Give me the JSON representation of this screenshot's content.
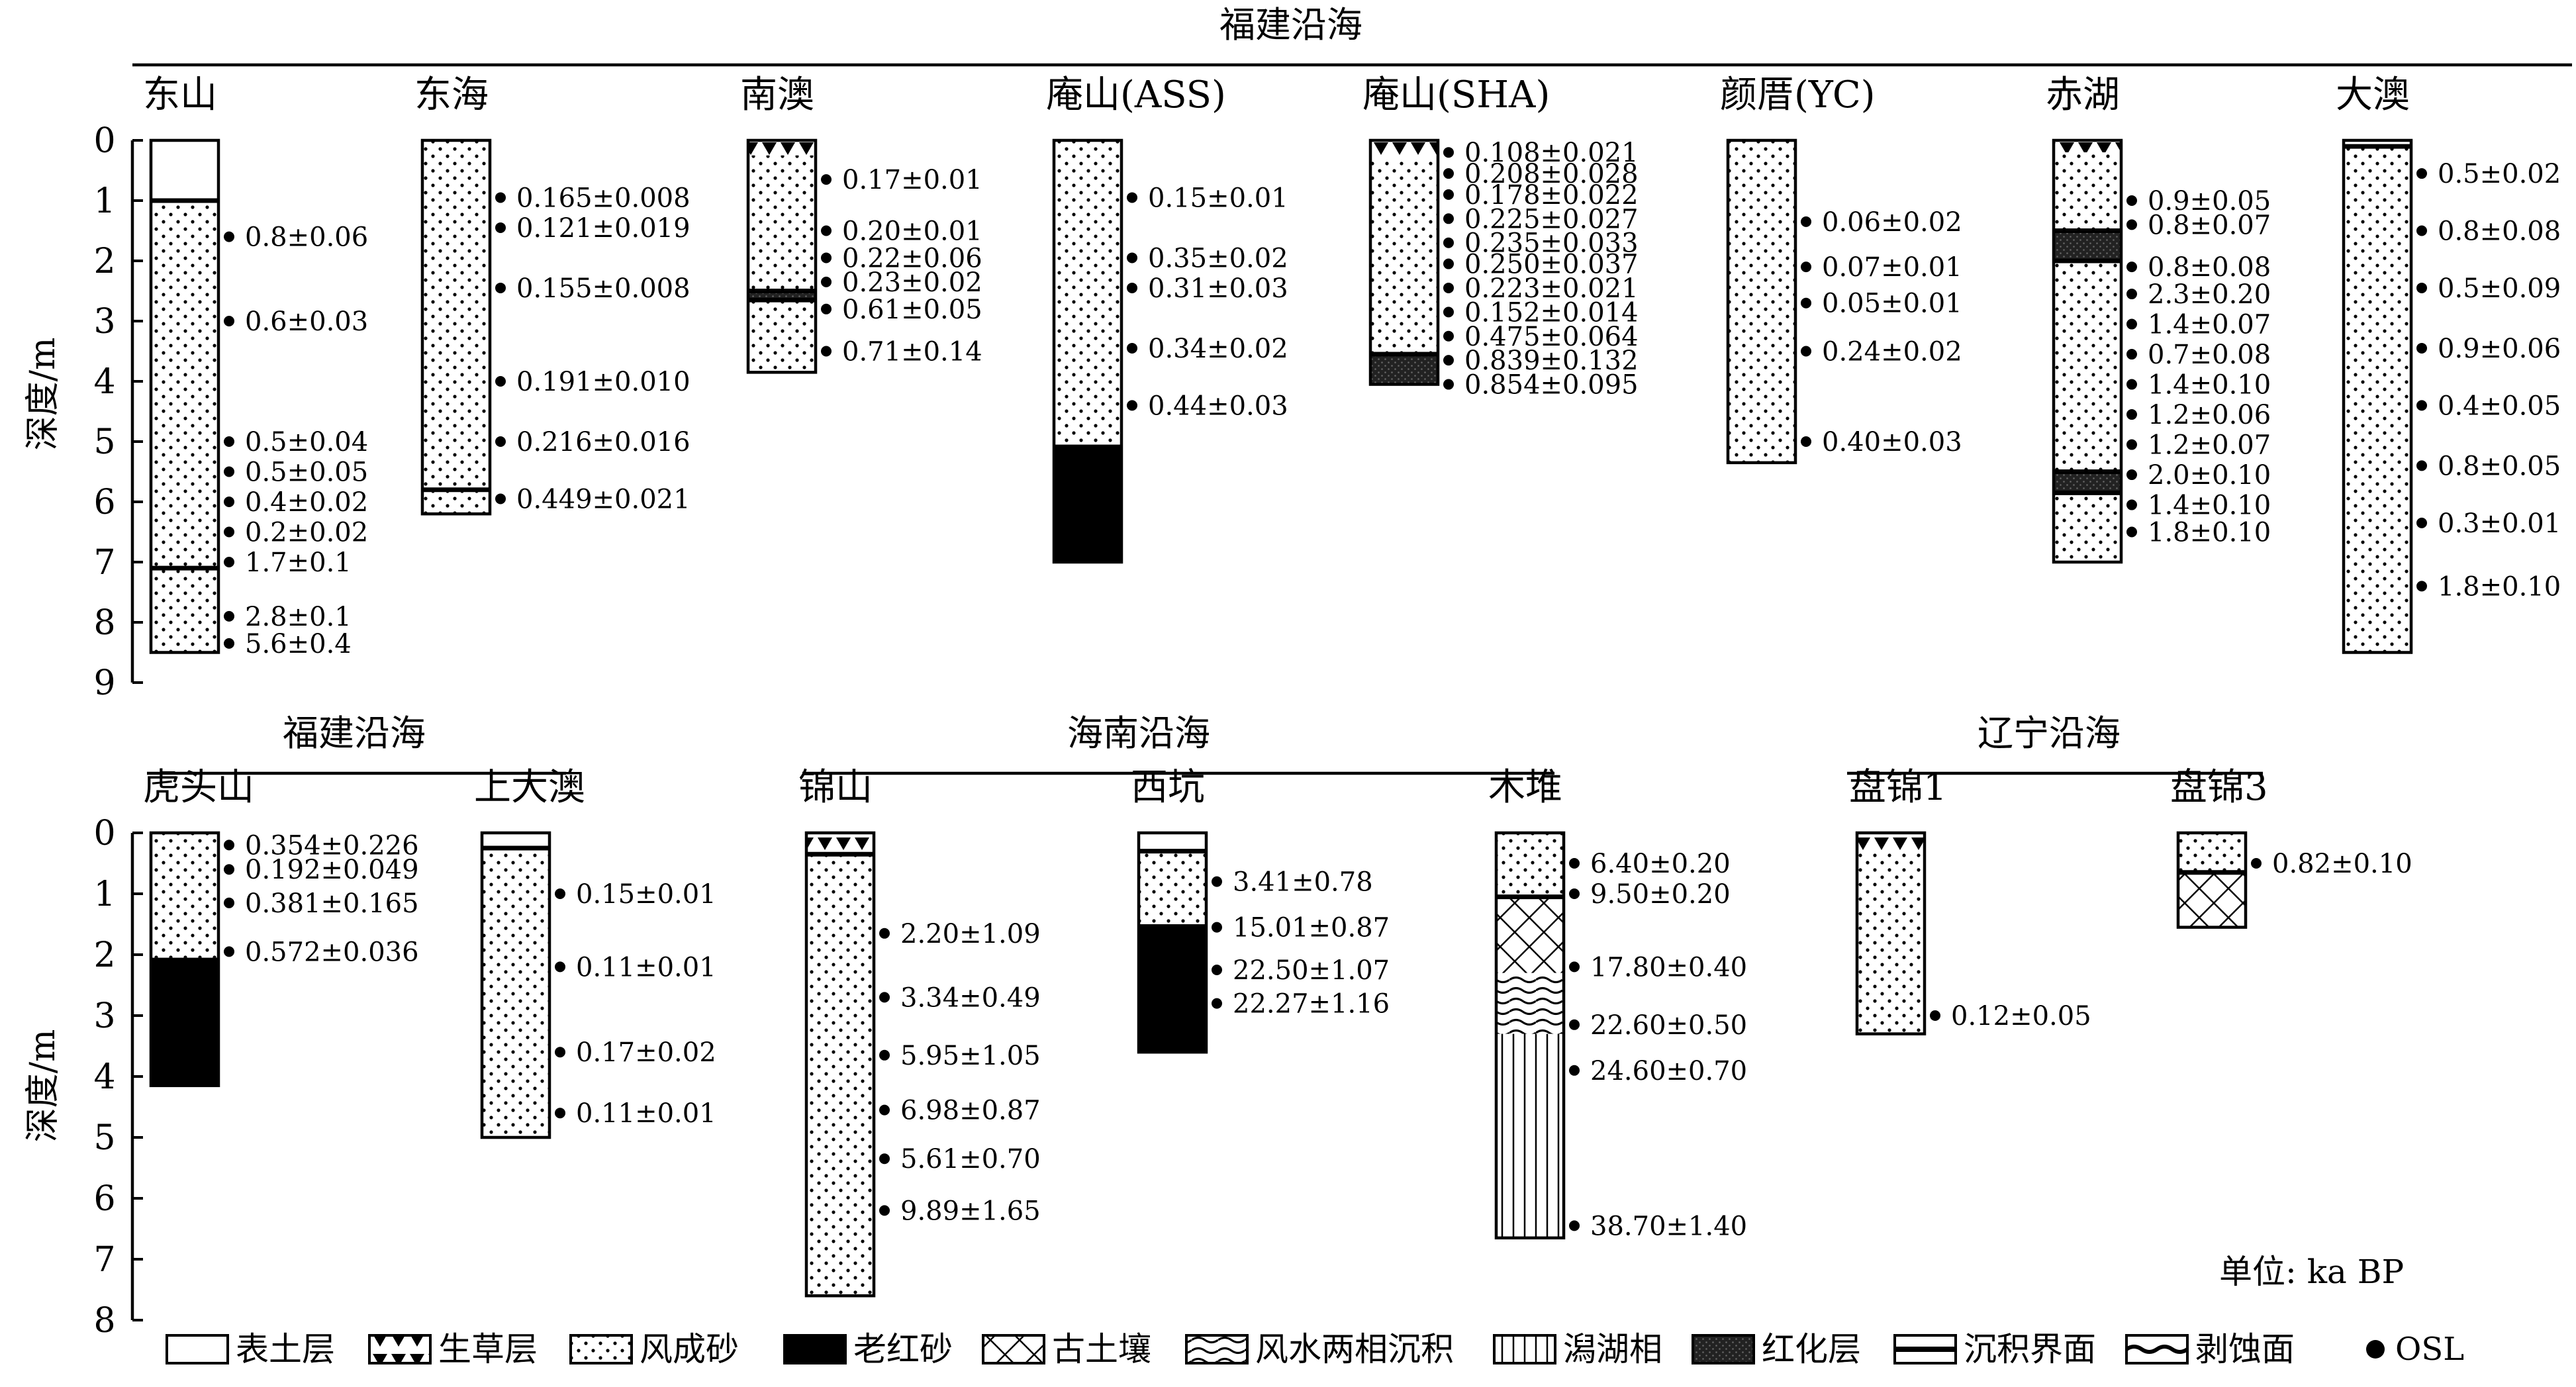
{
  "units_note": "单位: ka BP",
  "depth_axis_label": "深度/m",
  "regions": [
    {
      "name": "福建沿海"
    },
    {
      "name": "福建沿海"
    },
    {
      "name": "海南沿海"
    },
    {
      "name": "辽宁沿海"
    }
  ],
  "legend": [
    {
      "key": "topsoil",
      "label": "表土层"
    },
    {
      "key": "grass",
      "label": "生草层"
    },
    {
      "key": "aeolian",
      "label": "风成砂"
    },
    {
      "key": "oldred",
      "label": "老红砂"
    },
    {
      "key": "paleosol",
      "label": "古土壤"
    },
    {
      "key": "wavy",
      "label": "风水两相沉积"
    },
    {
      "key": "lagoon",
      "label": "潟湖相"
    },
    {
      "key": "redden",
      "label": "红化层"
    },
    {
      "key": "boundary",
      "label": "沉积界面"
    },
    {
      "key": "erosion",
      "label": "剥蚀面"
    },
    {
      "key": "osl",
      "label": "OSL"
    }
  ],
  "axes": [
    {
      "ticks": [
        "0",
        "1",
        "2",
        "3",
        "4",
        "5",
        "6",
        "7",
        "8",
        "9"
      ]
    },
    {
      "ticks": [
        "0",
        "1",
        "2",
        "3",
        "4",
        "5",
        "6",
        "7",
        "8"
      ]
    }
  ],
  "profiles": [
    {
      "name": "东山",
      "total_depth_m": 8.5,
      "layers": [
        {
          "type": "topsoil",
          "top": 0,
          "bottom": 1
        },
        {
          "type": "aeolian",
          "top": 1,
          "bottom": 8.5
        }
      ],
      "boundaries": [
        {
          "type": "boundary",
          "depth": 1
        },
        {
          "type": "boundary",
          "depth": 7.1
        }
      ],
      "osl": [
        {
          "depth": 1.6,
          "age": "0.8±0.06"
        },
        {
          "depth": 3.0,
          "age": "0.6±0.03"
        },
        {
          "depth": 5.0,
          "age": "0.5±0.04"
        },
        {
          "depth": 5.5,
          "age": "0.5±0.05"
        },
        {
          "depth": 6.0,
          "age": "0.4±0.02"
        },
        {
          "depth": 6.5,
          "age": "0.2±0.02"
        },
        {
          "depth": 7.0,
          "age": "1.7±0.1"
        },
        {
          "depth": 7.9,
          "age": "2.8±0.1"
        },
        {
          "depth": 8.35,
          "age": "5.6±0.4"
        }
      ]
    },
    {
      "name": "东海",
      "total_depth_m": 6.2,
      "layers": [
        {
          "type": "aeolian",
          "top": 0,
          "bottom": 6.2
        }
      ],
      "boundaries": [
        {
          "type": "boundary",
          "depth": 5.8
        }
      ],
      "osl": [
        {
          "depth": 0.95,
          "age": "0.165±0.008"
        },
        {
          "depth": 1.45,
          "age": "0.121±0.019"
        },
        {
          "depth": 2.45,
          "age": "0.155±0.008"
        },
        {
          "depth": 4.0,
          "age": "0.191±0.010"
        },
        {
          "depth": 5.0,
          "age": "0.216±0.016"
        },
        {
          "depth": 5.95,
          "age": "0.449±0.021"
        }
      ]
    },
    {
      "name": "南澳",
      "total_depth_m": 3.85,
      "layers": [
        {
          "type": "grass",
          "top": 0,
          "bottom": 0.25
        },
        {
          "type": "aeolian",
          "top": 0.25,
          "bottom": 2.5
        },
        {
          "type": "redden",
          "top": 2.5,
          "bottom": 2.65
        },
        {
          "type": "aeolian",
          "top": 2.65,
          "bottom": 3.85
        }
      ],
      "boundaries": [
        {
          "type": "boundary",
          "depth": 2.5
        },
        {
          "type": "boundary",
          "depth": 2.65
        }
      ],
      "osl": [
        {
          "depth": 0.65,
          "age": "0.17±0.01"
        },
        {
          "depth": 1.5,
          "age": "0.20±0.01"
        },
        {
          "depth": 1.95,
          "age": "0.22±0.06"
        },
        {
          "depth": 2.35,
          "age": "0.23±0.02"
        },
        {
          "depth": 2.8,
          "age": "0.61±0.05"
        },
        {
          "depth": 3.5,
          "age": "0.71±0.14"
        }
      ]
    },
    {
      "name": "庵山(ASS)",
      "total_depth_m": 7.0,
      "layers": [
        {
          "type": "aeolian",
          "top": 0,
          "bottom": 5.05
        },
        {
          "type": "oldred",
          "top": 5.05,
          "bottom": 7.0
        }
      ],
      "boundaries": [],
      "osl": [
        {
          "depth": 0.95,
          "age": "0.15±0.01"
        },
        {
          "depth": 1.95,
          "age": "0.35±0.02"
        },
        {
          "depth": 2.45,
          "age": "0.31±0.03"
        },
        {
          "depth": 3.45,
          "age": "0.34±0.02"
        },
        {
          "depth": 4.4,
          "age": "0.44±0.03"
        }
      ]
    },
    {
      "name": "庵山(SHA)",
      "total_depth_m": 4.05,
      "layers": [
        {
          "type": "grass",
          "top": 0,
          "bottom": 0.3
        },
        {
          "type": "aeolian",
          "top": 0.3,
          "bottom": 3.55
        },
        {
          "type": "redden",
          "top": 3.55,
          "bottom": 4.05
        }
      ],
      "boundaries": [
        {
          "type": "boundary",
          "depth": 3.55
        }
      ],
      "osl": [
        {
          "depth": 0.2,
          "age": "0.108±0.021"
        },
        {
          "depth": 0.55,
          "age": "0.208±0.028"
        },
        {
          "depth": 0.9,
          "age": "0.178±0.022"
        },
        {
          "depth": 1.3,
          "age": "0.225±0.027"
        },
        {
          "depth": 1.7,
          "age": "0.235±0.033"
        },
        {
          "depth": 2.05,
          "age": "0.250±0.037"
        },
        {
          "depth": 2.45,
          "age": "0.223±0.021"
        },
        {
          "depth": 2.85,
          "age": "0.152±0.014"
        },
        {
          "depth": 3.25,
          "age": "0.475±0.064"
        },
        {
          "depth": 3.65,
          "age": "0.839±0.132"
        },
        {
          "depth": 4.05,
          "age": "0.854±0.095"
        }
      ]
    },
    {
      "name": "颜厝(YC)",
      "total_depth_m": 5.35,
      "layers": [
        {
          "type": "aeolian",
          "top": 0,
          "bottom": 5.35
        }
      ],
      "boundaries": [],
      "osl": [
        {
          "depth": 1.35,
          "age": "0.06±0.02"
        },
        {
          "depth": 2.1,
          "age": "0.07±0.01"
        },
        {
          "depth": 2.7,
          "age": "0.05±0.01"
        },
        {
          "depth": 3.5,
          "age": "0.24±0.02"
        },
        {
          "depth": 5.0,
          "age": "0.40±0.03"
        }
      ]
    },
    {
      "name": "赤湖",
      "total_depth_m": 7.0,
      "layers": [
        {
          "type": "grass",
          "top": 0,
          "bottom": 0.2
        },
        {
          "type": "aeolian",
          "top": 0.2,
          "bottom": 1.5
        },
        {
          "type": "redden",
          "top": 1.5,
          "bottom": 2.0
        },
        {
          "type": "aeolian",
          "top": 2.0,
          "bottom": 5.5
        },
        {
          "type": "redden",
          "top": 5.5,
          "bottom": 5.85
        },
        {
          "type": "aeolian",
          "top": 5.85,
          "bottom": 7.0
        }
      ],
      "boundaries": [
        {
          "type": "boundary",
          "depth": 1.5
        },
        {
          "type": "boundary",
          "depth": 2.0
        },
        {
          "type": "boundary",
          "depth": 5.5
        },
        {
          "type": "boundary",
          "depth": 5.85
        }
      ],
      "osl": [
        {
          "depth": 1.0,
          "age": "0.9±0.05"
        },
        {
          "depth": 1.4,
          "age": "0.8±0.07"
        },
        {
          "depth": 2.1,
          "age": "0.8±0.08"
        },
        {
          "depth": 2.55,
          "age": "2.3±0.20"
        },
        {
          "depth": 3.05,
          "age": "1.4±0.07"
        },
        {
          "depth": 3.55,
          "age": "0.7±0.08"
        },
        {
          "depth": 4.05,
          "age": "1.4±0.10"
        },
        {
          "depth": 4.55,
          "age": "1.2±0.06"
        },
        {
          "depth": 5.05,
          "age": "1.2±0.07"
        },
        {
          "depth": 5.55,
          "age": "2.0±0.10"
        },
        {
          "depth": 6.05,
          "age": "1.4±0.10"
        },
        {
          "depth": 6.5,
          "age": "1.8±0.10"
        }
      ]
    },
    {
      "name": "大澳",
      "total_depth_m": 8.5,
      "layers": [
        {
          "type": "topsoil",
          "top": 0,
          "bottom": 0.1
        },
        {
          "type": "aeolian",
          "top": 0.1,
          "bottom": 8.5
        }
      ],
      "boundaries": [
        {
          "type": "boundary",
          "depth": 0.1
        }
      ],
      "osl": [
        {
          "depth": 0.55,
          "age": "0.5±0.02"
        },
        {
          "depth": 1.5,
          "age": "0.8±0.08"
        },
        {
          "depth": 2.45,
          "age": "0.5±0.09"
        },
        {
          "depth": 3.45,
          "age": "0.9±0.06"
        },
        {
          "depth": 4.4,
          "age": "0.4±0.05"
        },
        {
          "depth": 5.4,
          "age": "0.8±0.05"
        },
        {
          "depth": 6.35,
          "age": "0.3±0.01"
        },
        {
          "depth": 7.4,
          "age": "1.8±0.10"
        }
      ]
    },
    {
      "name": "虎头山",
      "total_depth_m": 4.15,
      "layers": [
        {
          "type": "aeolian",
          "top": 0,
          "bottom": 2.05
        },
        {
          "type": "oldred",
          "top": 2.05,
          "bottom": 4.15
        }
      ],
      "boundaries": [],
      "osl": [
        {
          "depth": 0.2,
          "age": "0.354±0.226"
        },
        {
          "depth": 0.6,
          "age": "0.192±0.049"
        },
        {
          "depth": 1.15,
          "age": "0.381±0.165"
        },
        {
          "depth": 1.95,
          "age": "0.572±0.036"
        }
      ]
    },
    {
      "name": "上大澳",
      "total_depth_m": 5.0,
      "layers": [
        {
          "type": "topsoil",
          "top": 0,
          "bottom": 0.25
        },
        {
          "type": "aeolian",
          "top": 0.25,
          "bottom": 5.0
        }
      ],
      "boundaries": [
        {
          "type": "boundary",
          "depth": 0.25
        }
      ],
      "osl": [
        {
          "depth": 1.0,
          "age": "0.15±0.01"
        },
        {
          "depth": 2.2,
          "age": "0.11±0.01"
        },
        {
          "depth": 3.6,
          "age": "0.17±0.02"
        },
        {
          "depth": 4.6,
          "age": "0.11±0.01"
        }
      ]
    },
    {
      "name": "锦山",
      "total_depth_m": 7.6,
      "layers": [
        {
          "type": "grass",
          "top": 0,
          "bottom": 0.35
        },
        {
          "type": "aeolian",
          "top": 0.35,
          "bottom": 7.6
        }
      ],
      "boundaries": [
        {
          "type": "boundary",
          "depth": 0.35
        }
      ],
      "osl": [
        {
          "depth": 1.65,
          "age": "2.20±1.09"
        },
        {
          "depth": 2.7,
          "age": "3.34±0.49"
        },
        {
          "depth": 3.65,
          "age": "5.95±1.05"
        },
        {
          "depth": 4.55,
          "age": "6.98±0.87"
        },
        {
          "depth": 5.35,
          "age": "5.61±0.70"
        },
        {
          "depth": 6.2,
          "age": "9.89±1.65"
        }
      ]
    },
    {
      "name": "西坑",
      "total_depth_m": 3.6,
      "layers": [
        {
          "type": "topsoil",
          "top": 0,
          "bottom": 0.3
        },
        {
          "type": "aeolian",
          "top": 0.3,
          "bottom": 1.5
        },
        {
          "type": "oldred",
          "top": 1.5,
          "bottom": 3.6
        }
      ],
      "boundaries": [
        {
          "type": "boundary",
          "depth": 0.3
        }
      ],
      "osl": [
        {
          "depth": 0.8,
          "age": "3.41±0.78"
        },
        {
          "depth": 1.55,
          "age": "15.01±0.87"
        },
        {
          "depth": 2.25,
          "age": "22.50±1.07"
        },
        {
          "depth": 2.8,
          "age": "22.27±1.16"
        }
      ]
    },
    {
      "name": "木堆",
      "total_depth_m": 6.65,
      "layers": [
        {
          "type": "aeolian",
          "top": 0,
          "bottom": 1.05
        },
        {
          "type": "paleosol",
          "top": 1.05,
          "bottom": 2.3
        },
        {
          "type": "wavy",
          "top": 2.3,
          "bottom": 3.3
        },
        {
          "type": "lagoon",
          "top": 3.3,
          "bottom": 6.65
        }
      ],
      "boundaries": [
        {
          "type": "boundary",
          "depth": 1.05
        }
      ],
      "osl": [
        {
          "depth": 0.5,
          "age": "6.40±0.20"
        },
        {
          "depth": 1.0,
          "age": "9.50±0.20"
        },
        {
          "depth": 2.2,
          "age": "17.80±0.40"
        },
        {
          "depth": 3.15,
          "age": "22.60±0.50"
        },
        {
          "depth": 3.9,
          "age": "24.60±0.70"
        },
        {
          "depth": 6.45,
          "age": "38.70±1.40"
        }
      ]
    },
    {
      "name": "盘锦1",
      "total_depth_m": 3.3,
      "layers": [
        {
          "type": "grass",
          "top": 0,
          "bottom": 0.3
        },
        {
          "type": "aeolian",
          "top": 0.3,
          "bottom": 3.3
        }
      ],
      "boundaries": [],
      "osl": [
        {
          "depth": 3.0,
          "age": "0.12±0.05"
        }
      ]
    },
    {
      "name": "盘锦3",
      "total_depth_m": 1.55,
      "layers": [
        {
          "type": "aeolian",
          "top": 0,
          "bottom": 0.65
        },
        {
          "type": "paleosol",
          "top": 0.65,
          "bottom": 1.55
        }
      ],
      "boundaries": [
        {
          "type": "boundary",
          "depth": 0.65
        }
      ],
      "osl": [
        {
          "depth": 0.5,
          "age": "0.82±0.10"
        }
      ]
    }
  ]
}
